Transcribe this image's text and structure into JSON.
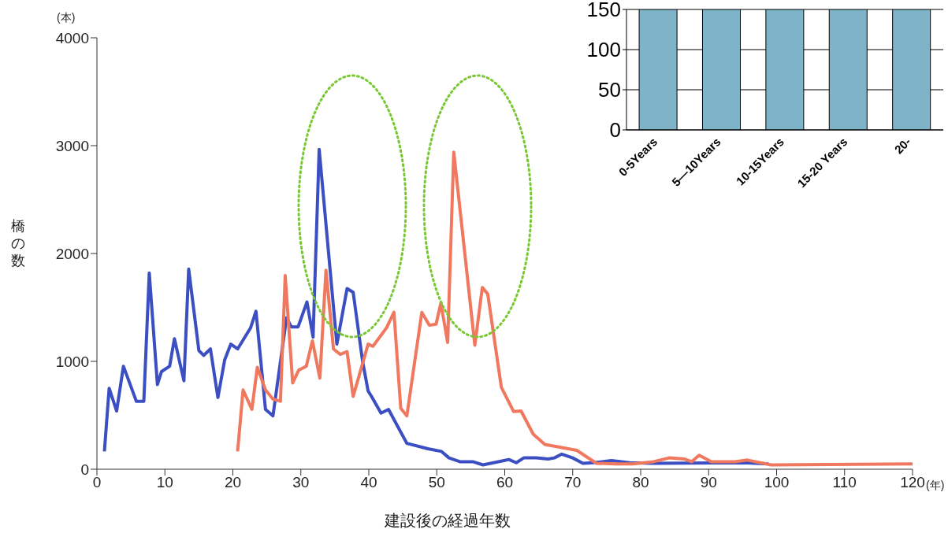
{
  "chart_data": [
    {
      "type": "line",
      "xlabel": "建設後の経過年数",
      "ylabel": "橋の数",
      "annotations": [
        "(本)",
        "(年)"
      ],
      "xlim": [
        0,
        120
      ],
      "xticks": [
        0,
        10,
        20,
        30,
        40,
        50,
        60,
        70,
        80,
        90,
        100,
        110,
        120
      ],
      "ylim": [
        0,
        4000
      ],
      "yticks": [
        0,
        1000,
        2000,
        3000,
        4000
      ],
      "grid": false,
      "marker": "none",
      "line_style": "solid",
      "series": [
        {
          "color": "#3b4fc2",
          "x": [
            1.1,
            1.8,
            2.9,
            3.9,
            5.8,
            6.9,
            7.7,
            8.9,
            9.5,
            10.7,
            11.4,
            12.8,
            13.5,
            15,
            15.7,
            16.7,
            17.8,
            18.8,
            19.7,
            20.7,
            22.6,
            23.4,
            24.8,
            25.9,
            27.9,
            28.6,
            29.6,
            30.9,
            31.8,
            32.7,
            35.3,
            36.8,
            37.7,
            39.1,
            39.9,
            40.4,
            41.8,
            42.9,
            45.6,
            48.7,
            50.7,
            51.8,
            53.4,
            55.3,
            56.8,
            59.9,
            60.6,
            61.7,
            62.8,
            64.6,
            66.4,
            67.3,
            68.4,
            70,
            71.5,
            73,
            75.7,
            78.4,
            81.9,
            95.2,
            98.8
          ],
          "values": [
            165,
            750,
            540,
            955,
            630,
            630,
            1820,
            785,
            905,
            955,
            1210,
            820,
            1855,
            1100,
            1055,
            1115,
            665,
            1015,
            1160,
            1115,
            1310,
            1465,
            555,
            495,
            1405,
            1320,
            1320,
            1550,
            1225,
            2965,
            1160,
            1675,
            1640,
            995,
            725,
            675,
            520,
            555,
            240,
            190,
            165,
            105,
            70,
            70,
            40,
            80,
            90,
            60,
            105,
            105,
            95,
            105,
            140,
            105,
            55,
            60,
            80,
            60,
            55,
            60,
            50
          ]
        },
        {
          "color": "#f0785e",
          "x": [
            20.7,
            21.5,
            22.8,
            23.6,
            24.8,
            25.9,
            27,
            27.7,
            28.8,
            29.7,
            30.8,
            31.7,
            32.8,
            33.7,
            34.8,
            35.8,
            36.8,
            37.7,
            39.9,
            40.6,
            42.6,
            43.7,
            44.7,
            45.6,
            47.8,
            48.9,
            49.9,
            50.6,
            51.6,
            52.5,
            55.6,
            56.7,
            57.5,
            59.5,
            61.3,
            62.4,
            64.2,
            65.9,
            70.6,
            73.5,
            76.2,
            78.8,
            81.9,
            84.2,
            86.4,
            87.5,
            88.6,
            90.4,
            93.9,
            95.7,
            99.2,
            120
          ],
          "values": [
            165,
            735,
            555,
            945,
            735,
            650,
            630,
            1795,
            800,
            920,
            955,
            1190,
            845,
            1845,
            1115,
            1065,
            1090,
            675,
            1160,
            1140,
            1310,
            1455,
            565,
            495,
            1455,
            1335,
            1345,
            1540,
            1175,
            2940,
            1150,
            1685,
            1625,
            760,
            535,
            540,
            325,
            230,
            175,
            55,
            50,
            50,
            70,
            105,
            95,
            70,
            130,
            70,
            70,
            85,
            40,
            50
          ]
        }
      ]
    },
    {
      "type": "bar",
      "categories": [
        "0-5Years",
        "5—10Years",
        "10-15Years",
        "15-20 Years",
        "20-"
      ],
      "values": [
        150,
        150,
        150,
        150,
        150
      ],
      "color": "#7fb3c8",
      "ylim": [
        0,
        150
      ],
      "yticks": [
        0,
        50,
        100,
        150
      ],
      "grid": "y"
    }
  ]
}
